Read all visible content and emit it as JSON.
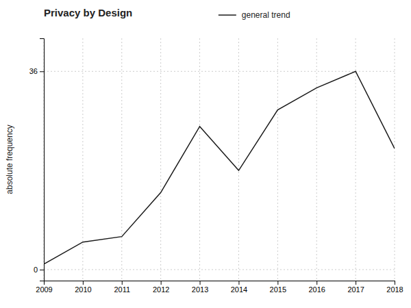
{
  "chart_data": {
    "type": "line",
    "title": "Privacy by Design",
    "ylabel": "absolute frequency",
    "x": [
      2009,
      2010,
      2011,
      2012,
      2013,
      2014,
      2015,
      2016,
      2017,
      2018
    ],
    "series": [
      {
        "name": "general trend",
        "color": "#1a1a1a",
        "values": [
          1,
          5,
          6,
          14,
          26,
          18,
          29,
          33,
          36,
          22
        ]
      }
    ],
    "xlim": [
      2009,
      2018
    ],
    "xticks": [
      2009,
      2010,
      2011,
      2012,
      2013,
      2014,
      2015,
      2016,
      2017,
      2018
    ],
    "ylim": [
      -2,
      42
    ],
    "yticks": [
      0,
      36
    ],
    "grid": true,
    "legend": "top"
  }
}
